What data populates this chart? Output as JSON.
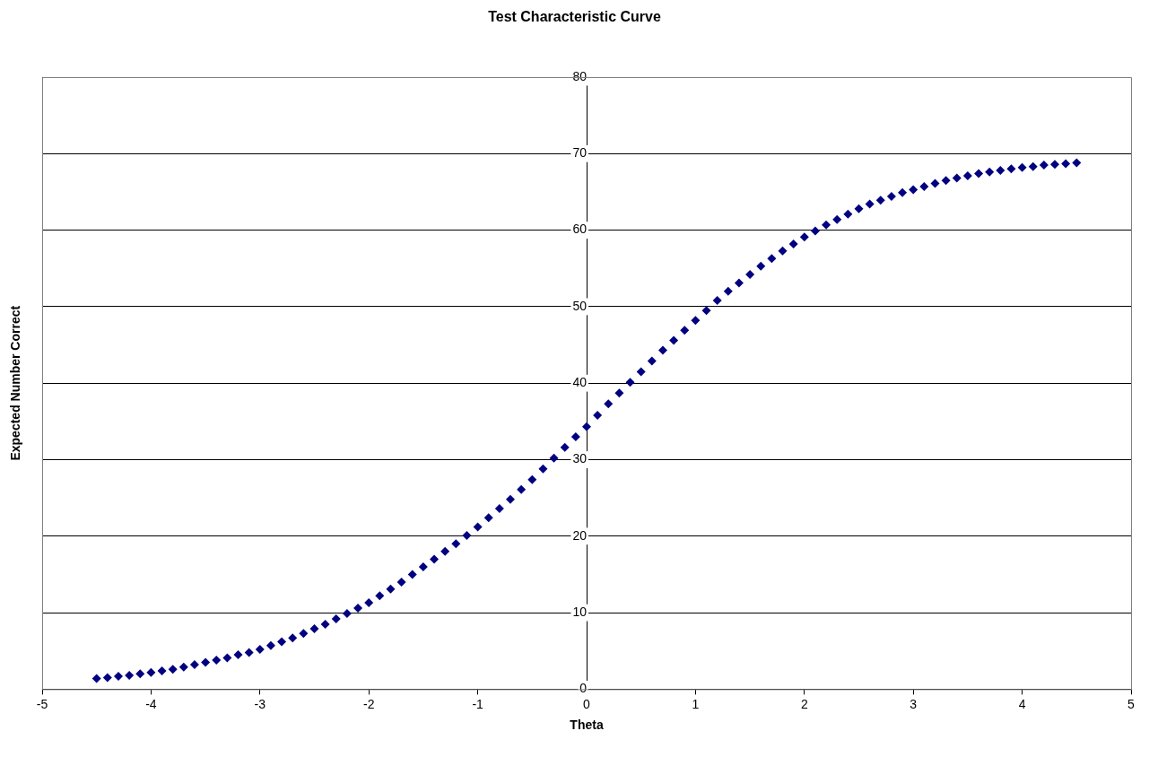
{
  "chart_data": {
    "type": "scatter",
    "title": "Test Characteristic Curve",
    "xlabel": "Theta",
    "ylabel": "Expected Number Correct",
    "x": [
      -4.5,
      -4.4,
      -4.3,
      -4.2,
      -4.1,
      -4.0,
      -3.9,
      -3.8,
      -3.7,
      -3.6,
      -3.5,
      -3.4,
      -3.3,
      -3.2,
      -3.1,
      -3.0,
      -2.9,
      -2.8,
      -2.7,
      -2.6,
      -2.5,
      -2.4,
      -2.3,
      -2.2,
      -2.1,
      -2.0,
      -1.9,
      -1.8,
      -1.7,
      -1.6,
      -1.5,
      -1.4,
      -1.3,
      -1.2,
      -1.1,
      -1.0,
      -0.9,
      -0.8,
      -0.7,
      -0.6,
      -0.5,
      -0.4,
      -0.3,
      -0.2,
      -0.1,
      0.0,
      0.1,
      0.2,
      0.3,
      0.4,
      0.5,
      0.6,
      0.7,
      0.8,
      0.9,
      1.0,
      1.1,
      1.2,
      1.3,
      1.4,
      1.5,
      1.6,
      1.7,
      1.8,
      1.9,
      2.0,
      2.1,
      2.2,
      2.3,
      2.4,
      2.5,
      2.6,
      2.7,
      2.8,
      2.9,
      3.0,
      3.1,
      3.2,
      3.3,
      3.4,
      3.5,
      3.6,
      3.7,
      3.8,
      3.9,
      4.0,
      4.1,
      4.2,
      4.3,
      4.4,
      4.5
    ],
    "series": [
      {
        "color": "#000080",
        "values": [
          1.4,
          1.5,
          1.7,
          1.8,
          2.0,
          2.2,
          2.4,
          2.6,
          2.9,
          3.2,
          3.5,
          3.8,
          4.1,
          4.5,
          4.8,
          5.2,
          5.7,
          6.2,
          6.7,
          7.3,
          7.9,
          8.5,
          9.2,
          9.9,
          10.6,
          11.3,
          12.2,
          13.1,
          14.0,
          15.0,
          16.0,
          17.0,
          18.0,
          19.0,
          20.1,
          21.2,
          22.4,
          23.6,
          24.8,
          26.1,
          27.4,
          28.8,
          30.2,
          31.6,
          33.0,
          34.3,
          35.8,
          37.3,
          38.7,
          40.1,
          41.5,
          42.9,
          44.3,
          45.6,
          46.9,
          48.2,
          49.5,
          50.8,
          52.0,
          53.1,
          54.2,
          55.3,
          56.3,
          57.3,
          58.2,
          59.1,
          59.9,
          60.7,
          61.4,
          62.1,
          62.8,
          63.4,
          63.9,
          64.4,
          64.9,
          65.3,
          65.7,
          66.1,
          66.5,
          66.8,
          67.1,
          67.4,
          67.6,
          67.8,
          68.0,
          68.2,
          68.3,
          68.5,
          68.6,
          68.7,
          68.8
        ]
      }
    ],
    "xlim": [
      -5,
      5
    ],
    "xticks": [
      -5,
      -4,
      -3,
      -2,
      -1,
      0,
      1,
      2,
      3,
      4,
      5
    ],
    "ylim": [
      0,
      80
    ],
    "yticks": [
      0,
      10,
      20,
      30,
      40,
      50,
      60,
      70,
      80
    ],
    "grid": "y",
    "legend": false,
    "marker": "diamond"
  }
}
